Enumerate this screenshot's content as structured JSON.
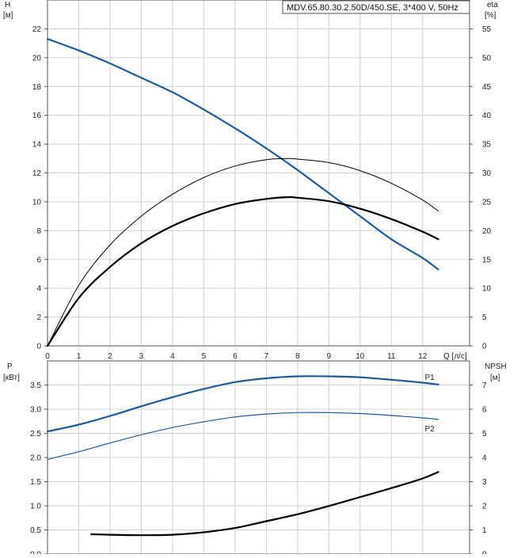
{
  "title": "MDV.65.80.30.2.50D/450.SE, 3*400 V, 50Hz",
  "chart_data": [
    {
      "type": "line",
      "name": "head-efficiency",
      "xlabel": "Q [л/с]",
      "ylabel_left_name": "H",
      "ylabel_left_unit": "[м]",
      "ylabel_right_name": "eta",
      "ylabel_right_unit": "[%]",
      "xlim": [
        0,
        13.5
      ],
      "ylim_left": [
        0,
        24
      ],
      "ylim_right": [
        0,
        60
      ],
      "x_ticks": [
        "0",
        "1",
        "2",
        "3",
        "4",
        "5",
        "6",
        "7",
        "8",
        "9",
        "10",
        "11",
        "12"
      ],
      "y_left_ticks": [
        "0",
        "2",
        "4",
        "6",
        "8",
        "10",
        "12",
        "14",
        "16",
        "18",
        "20",
        "22"
      ],
      "y_right_ticks": [
        "0",
        "5",
        "10",
        "15",
        "20",
        "25",
        "30",
        "35",
        "40",
        "45",
        "50",
        "55"
      ],
      "grid": true,
      "series": [
        {
          "axis": "left",
          "color": "#1f5a96",
          "stroke": 2.2,
          "x": [
            0,
            1,
            2,
            3,
            4,
            5,
            6,
            7,
            8,
            9,
            10,
            11,
            12,
            12.5
          ],
          "values": [
            21.3,
            20.5,
            19.6,
            18.6,
            17.6,
            16.4,
            15.1,
            13.7,
            12.2,
            10.6,
            9.0,
            7.4,
            6.1,
            5.3
          ]
        },
        {
          "axis": "right",
          "color": "#000000",
          "stroke": 1.0,
          "x": [
            0,
            1,
            2,
            3,
            4,
            5,
            6,
            7,
            7.7,
            8,
            9,
            10,
            11,
            12,
            12.5
          ],
          "values": [
            0,
            10.5,
            17.5,
            22.5,
            26.3,
            29.2,
            31.2,
            32.3,
            32.5,
            32.4,
            31.8,
            30.4,
            28.2,
            25.3,
            23.4
          ]
        },
        {
          "axis": "right",
          "color": "#000000",
          "stroke": 2.2,
          "x": [
            0,
            1,
            2,
            3,
            4,
            5,
            6,
            7,
            7.7,
            8,
            9,
            10,
            11,
            12,
            12.5
          ],
          "values": [
            0,
            8.3,
            13.7,
            17.8,
            20.8,
            23.0,
            24.6,
            25.5,
            25.8,
            25.7,
            25.1,
            23.8,
            22.0,
            19.8,
            18.5
          ]
        }
      ]
    },
    {
      "type": "line",
      "name": "power-npsh",
      "ylabel_left_name": "P",
      "ylabel_left_unit": "[кВт]",
      "ylabel_right_name": "NPSH",
      "ylabel_right_unit": "[м]",
      "xlim": [
        0,
        13.5
      ],
      "ylim_left": [
        0,
        4.0
      ],
      "ylim_right": [
        0,
        8
      ],
      "y_left_ticks": [
        "0.0",
        "0.5",
        "1.0",
        "1.5",
        "2.0",
        "2.5",
        "3.0",
        "3.5"
      ],
      "y_right_ticks": [
        "0",
        "1",
        "2",
        "3",
        "4",
        "5",
        "6",
        "7"
      ],
      "grid": true,
      "series": [
        {
          "name": "P1",
          "axis": "left",
          "color": "#1f5a96",
          "stroke": 2.2,
          "x": [
            0,
            1,
            2,
            3,
            4,
            5,
            6,
            7,
            8,
            9,
            10,
            11,
            12,
            12.5
          ],
          "values": [
            2.54,
            2.68,
            2.86,
            3.06,
            3.25,
            3.42,
            3.56,
            3.64,
            3.68,
            3.68,
            3.66,
            3.61,
            3.55,
            3.51
          ]
        },
        {
          "name": "P2",
          "axis": "left",
          "color": "#1f5a96",
          "stroke": 1.2,
          "x": [
            0,
            1,
            2,
            3,
            4,
            5,
            6,
            7,
            8,
            9,
            10,
            11,
            12,
            12.5
          ],
          "values": [
            1.96,
            2.12,
            2.3,
            2.47,
            2.62,
            2.74,
            2.84,
            2.9,
            2.93,
            2.93,
            2.91,
            2.87,
            2.82,
            2.79
          ]
        },
        {
          "name": "NPSH",
          "axis": "right",
          "color": "#000000",
          "stroke": 2.2,
          "x": [
            1.4,
            2,
            3,
            4,
            5,
            6,
            7,
            8,
            9,
            10,
            11,
            12,
            12.5
          ],
          "values": [
            0.82,
            0.8,
            0.78,
            0.8,
            0.9,
            1.08,
            1.36,
            1.65,
            1.99,
            2.36,
            2.73,
            3.13,
            3.4
          ]
        }
      ]
    }
  ]
}
